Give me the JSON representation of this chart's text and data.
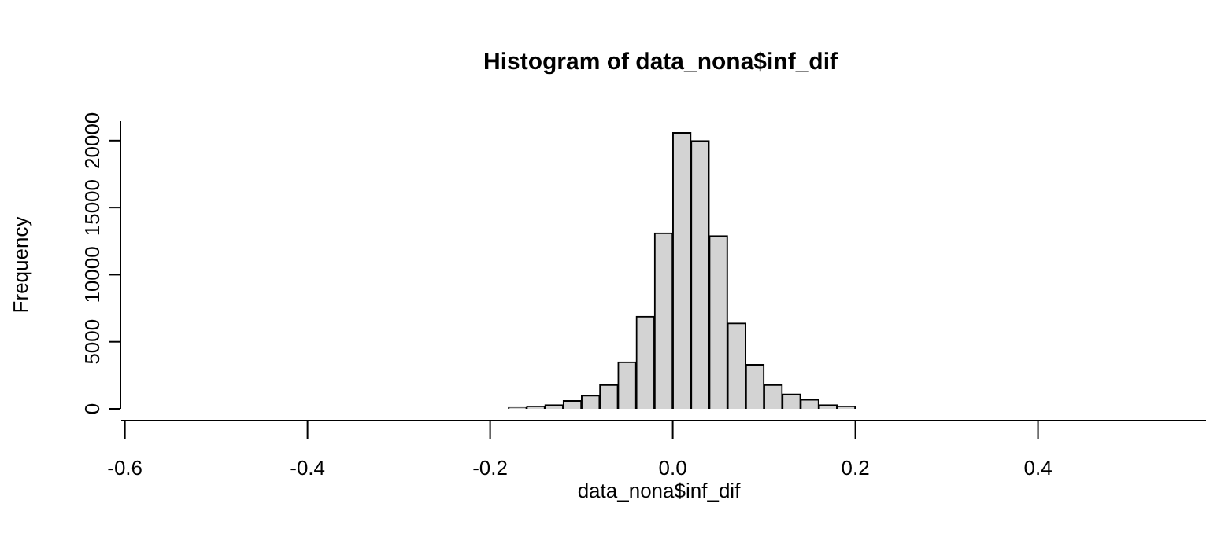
{
  "chart_data": {
    "type": "histogram",
    "title": "Histogram of data_nona$inf_dif",
    "xlabel": "data_nona$inf_dif",
    "ylabel": "Frequency",
    "bins": [
      -0.56,
      -0.54,
      -0.52,
      -0.5,
      -0.48,
      -0.46,
      -0.44,
      -0.42,
      -0.4,
      -0.38,
      -0.36,
      -0.34,
      -0.32,
      -0.3,
      -0.28,
      -0.26,
      -0.24,
      -0.22,
      -0.2,
      -0.18,
      -0.16,
      -0.14,
      -0.12,
      -0.1,
      -0.08,
      -0.06,
      -0.04,
      -0.02,
      0,
      0.02,
      0.04,
      0.06,
      0.08,
      0.1,
      0.12,
      0.14,
      0.16,
      0.18,
      0.2,
      0.22,
      0.24,
      0.26,
      0.28,
      0.3,
      0.32,
      0.34,
      0.36,
      0.38,
      0.4,
      0.42,
      0.44,
      0.46,
      0.48,
      0.5,
      0.52,
      0.54
    ],
    "values": [
      0,
      0,
      0,
      0,
      0,
      0,
      0,
      0,
      0,
      0,
      0,
      0,
      0,
      0,
      0,
      0,
      0,
      0,
      0,
      100,
      200,
      300,
      600,
      1000,
      1800,
      3500,
      6900,
      13100,
      20600,
      20000,
      12900,
      6400,
      3300,
      1800,
      1100,
      700,
      300,
      200,
      0,
      0,
      0,
      0,
      0,
      0,
      0,
      0,
      0,
      0,
      0,
      0,
      0,
      0,
      0,
      0,
      0
    ],
    "color": "#d3d3d3",
    "xlim": [
      -0.604,
      0.584
    ],
    "ylim": [
      0,
      21455
    ],
    "xticks": [
      -0.6,
      -0.4,
      -0.2,
      {
        "value": 0,
        "label": "0.0"
      },
      0.2,
      0.4
    ],
    "yticks": [
      0,
      5000,
      10000,
      15000,
      20000
    ]
  }
}
